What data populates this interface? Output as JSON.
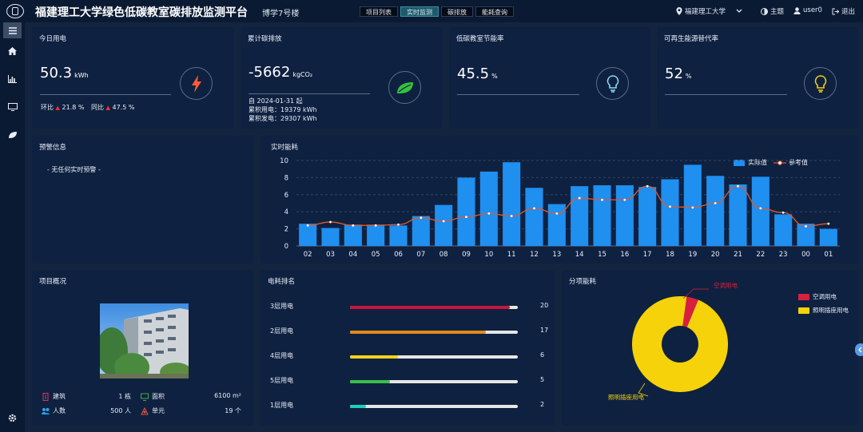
{
  "header": {
    "title": "福建理工大学绿色低碳教室碳排放监测平台",
    "building": "博学7号楼",
    "tabs": [
      "项目列表",
      "实时监测",
      "碳排放",
      "能耗查询"
    ],
    "active_tab": 1,
    "org": "福建理工大学",
    "theme": "主题",
    "user": "user0",
    "logout": "退出"
  },
  "kpis": {
    "today": {
      "title": "今日用电",
      "value": "50.3",
      "unit": "kWh",
      "hb_label": "环比",
      "hb_value": "21.8 %",
      "tb_label": "同比",
      "tb_value": "47.5 %"
    },
    "carbon": {
      "title": "累计碳排放",
      "value": "-5662",
      "unit": "kgCO₂",
      "since": "自 2024-01-31 起",
      "used": "累积用电：19379 kWh",
      "generated": "累积发电：29307 kWh"
    },
    "saving": {
      "title": "低碳教室节能率",
      "value": "45.5",
      "unit": "%"
    },
    "renew": {
      "title": "可再生能源替代率",
      "value": "52",
      "unit": "%"
    }
  },
  "alerts": {
    "title": "预警信息",
    "empty": "- 无任何实时预警 -"
  },
  "realtime": {
    "title": "实时能耗",
    "legend_actual": "实际值",
    "legend_ref": "参考值"
  },
  "chart_data": {
    "type": "bar",
    "categories": [
      "02",
      "03",
      "04",
      "05",
      "06",
      "07",
      "08",
      "09",
      "10",
      "11",
      "12",
      "13",
      "14",
      "15",
      "16",
      "17",
      "18",
      "19",
      "20",
      "21",
      "22",
      "23",
      "00",
      "01"
    ],
    "series": [
      {
        "name": "实际值",
        "type": "bar",
        "values": [
          2.6,
          2.1,
          2.5,
          2.5,
          2.4,
          3.5,
          4.8,
          8.0,
          8.7,
          9.8,
          6.8,
          4.9,
          7.0,
          7.1,
          7.1,
          6.9,
          7.8,
          9.5,
          8.2,
          7.2,
          8.1,
          3.7,
          2.6,
          2.0
        ]
      },
      {
        "name": "参考值",
        "type": "line",
        "values": [
          2.4,
          2.8,
          2.4,
          2.4,
          2.5,
          3.3,
          2.9,
          3.4,
          3.8,
          3.5,
          4.4,
          3.8,
          5.6,
          5.4,
          5.4,
          7.0,
          4.6,
          4.5,
          5.0,
          7.0,
          4.4,
          3.9,
          2.3,
          2.6
        ]
      }
    ],
    "ylim": [
      0,
      10
    ],
    "yticks": [
      0,
      2,
      4,
      6,
      8,
      10
    ],
    "colors": {
      "bar": "#1f8ff0",
      "line": "#e05a2b",
      "point": "#ffffff",
      "grid": "#2f4566",
      "axis": "#5a6c87"
    }
  },
  "overview": {
    "title": "项目概况",
    "stats": [
      {
        "icon": "building-icon",
        "label": "建筑",
        "value": "1 栋",
        "color": "#e0335a"
      },
      {
        "icon": "area-icon",
        "label": "面积",
        "value": "6100 m²",
        "color": "#3cb043"
      },
      {
        "icon": "people-icon",
        "label": "人数",
        "value": "500 人",
        "color": "#2aa7ef"
      },
      {
        "icon": "unit-icon",
        "label": "单元",
        "value": "19 个",
        "color": "#e8543a"
      }
    ]
  },
  "ranking": {
    "title": "电耗排名",
    "max": 21,
    "items": [
      {
        "label": "3层用电",
        "value": 20,
        "color": "#c8163c"
      },
      {
        "label": "2层用电",
        "value": 17,
        "color": "#e08a1c"
      },
      {
        "label": "4层用电",
        "value": 6,
        "color": "#f2d21a"
      },
      {
        "label": "5层用电",
        "value": 5,
        "color": "#3cbf4a"
      },
      {
        "label": "1层用电",
        "value": 2,
        "color": "#1ccfb8"
      }
    ]
  },
  "breakdown": {
    "title": "分项能耗",
    "items": [
      {
        "label": "空调用电",
        "share": 0.04,
        "color": "#d8203e"
      },
      {
        "label": "照明插座用电",
        "share": 0.96,
        "color": "#f5d20a"
      }
    ]
  }
}
